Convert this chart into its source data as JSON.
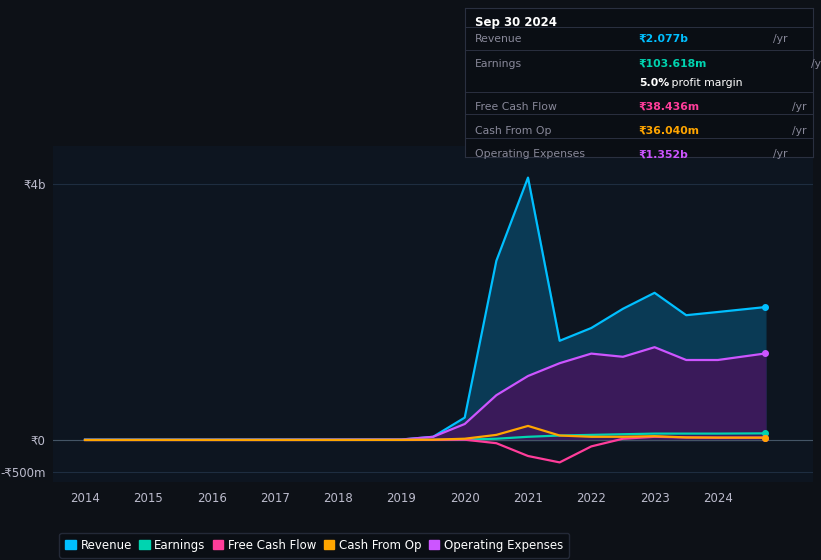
{
  "bg_color": "#0d1117",
  "plot_bg_color": "#0d1520",
  "years": [
    2014,
    2015,
    2016,
    2017,
    2018,
    2019,
    2019.5,
    2020,
    2020.5,
    2021,
    2021.5,
    2022,
    2022.5,
    2023,
    2023.5,
    2024,
    2024.75
  ],
  "revenue": [
    0.005,
    0.005,
    0.005,
    0.006,
    0.006,
    0.007,
    0.05,
    0.35,
    2.8,
    4.1,
    1.55,
    1.75,
    2.05,
    2.3,
    1.95,
    2.0,
    2.077
  ],
  "earnings": [
    0.001,
    0.001,
    0.001,
    0.001,
    0.001,
    0.001,
    0.002,
    0.005,
    0.02,
    0.05,
    0.07,
    0.08,
    0.09,
    0.1,
    0.1,
    0.1,
    0.104
  ],
  "free_cash_flow": [
    0.0,
    0.0,
    0.0,
    0.0,
    0.001,
    0.001,
    0.002,
    0.005,
    -0.05,
    -0.25,
    -0.35,
    -0.1,
    0.02,
    0.05,
    0.04,
    0.035,
    0.038
  ],
  "cash_from_op": [
    0.0,
    0.001,
    0.001,
    0.001,
    0.001,
    0.002,
    0.005,
    0.02,
    0.08,
    0.22,
    0.07,
    0.05,
    0.05,
    0.06,
    0.04,
    0.038,
    0.036
  ],
  "operating_expenses": [
    0.003,
    0.003,
    0.004,
    0.005,
    0.006,
    0.008,
    0.05,
    0.25,
    0.7,
    1.0,
    1.2,
    1.35,
    1.3,
    1.45,
    1.25,
    1.25,
    1.352
  ],
  "revenue_color": "#00bfff",
  "earnings_color": "#00d4b0",
  "free_cash_flow_color": "#ff3d9a",
  "cash_from_op_color": "#ffa500",
  "operating_expenses_color": "#cc55ff",
  "revenue_fill": "#0a3a55",
  "operating_expenses_fill": "#3a1a5a",
  "ylim_min": -0.65,
  "ylim_max": 4.6,
  "xlim_min": 2013.5,
  "xlim_max": 2025.5,
  "xlabel_years": [
    2014,
    2015,
    2016,
    2017,
    2018,
    2019,
    2020,
    2021,
    2022,
    2023,
    2024
  ],
  "info_box": {
    "title": "Sep 30 2024",
    "rows": [
      {
        "label": "Revenue",
        "value": "₹2.077b",
        "unit": "/yr",
        "value_color": "#00bfff"
      },
      {
        "label": "Earnings",
        "value": "₹103.618m",
        "unit": "/yr",
        "value_color": "#00d4b0"
      },
      {
        "label": "",
        "value": "5.0%",
        "unit": " profit margin",
        "value_color": "#ffffff",
        "is_margin": true
      },
      {
        "label": "Free Cash Flow",
        "value": "₹38.436m",
        "unit": "/yr",
        "value_color": "#ff3d9a"
      },
      {
        "label": "Cash From Op",
        "value": "₹36.040m",
        "unit": "/yr",
        "value_color": "#ffa500"
      },
      {
        "label": "Operating Expenses",
        "value": "₹1.352b",
        "unit": "/yr",
        "value_color": "#cc55ff"
      }
    ]
  },
  "legend_items": [
    {
      "label": "Revenue",
      "color": "#00bfff"
    },
    {
      "label": "Earnings",
      "color": "#00d4b0"
    },
    {
      "label": "Free Cash Flow",
      "color": "#ff3d9a"
    },
    {
      "label": "Cash From Op",
      "color": "#ffa500"
    },
    {
      "label": "Operating Expenses",
      "color": "#cc55ff"
    }
  ]
}
